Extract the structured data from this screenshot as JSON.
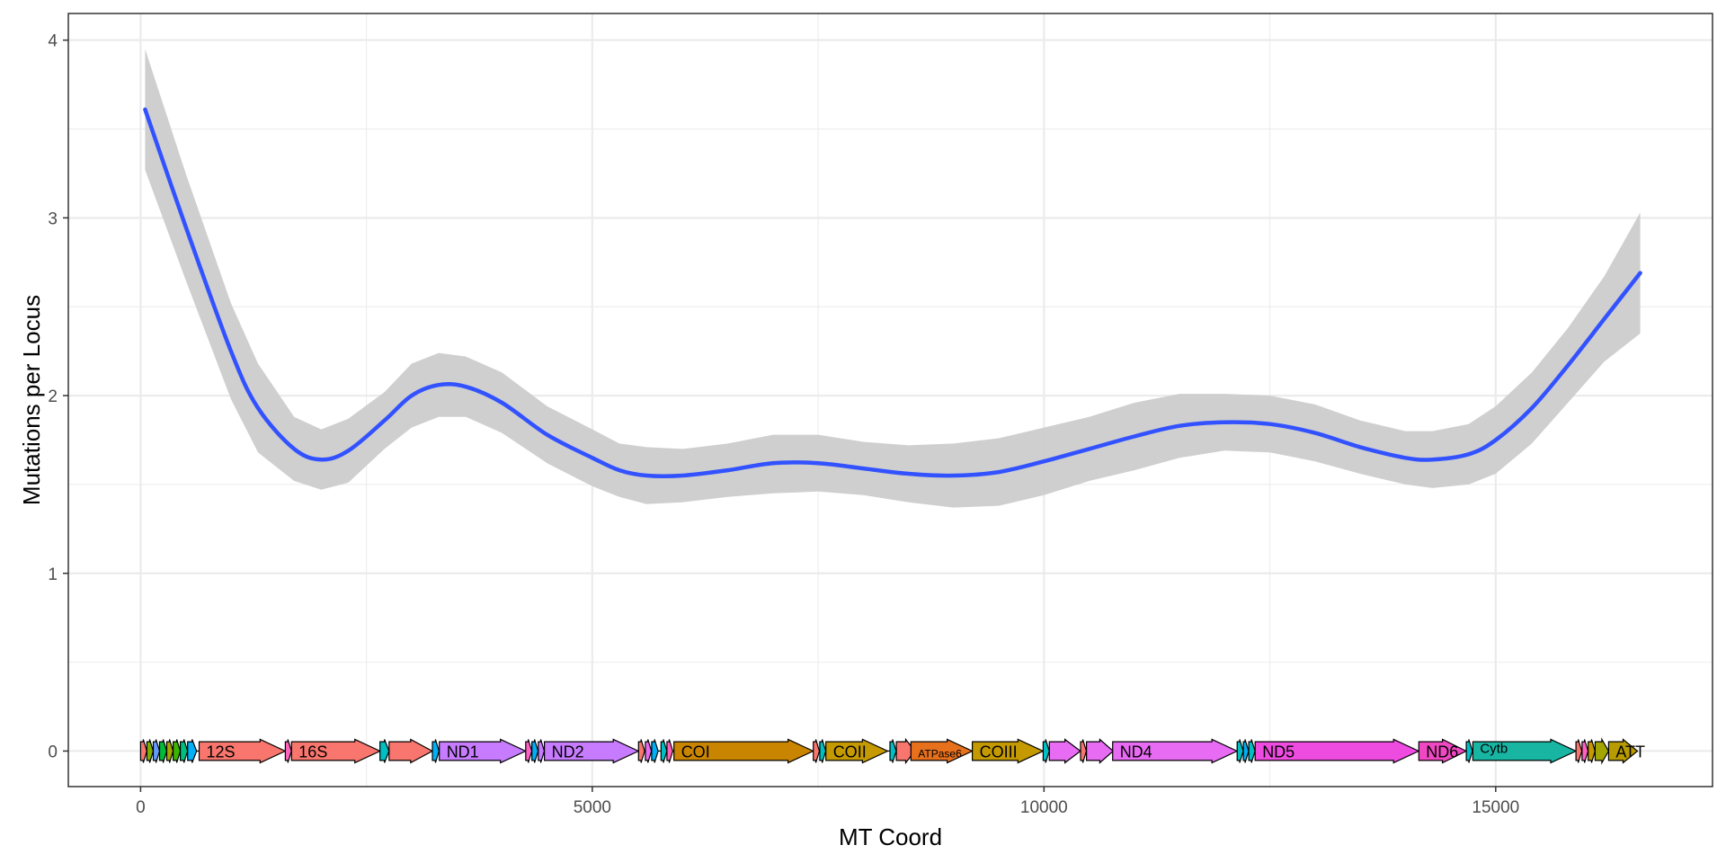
{
  "chart_data": {
    "type": "line",
    "xlabel": "MT Coord",
    "ylabel": "Mutations per Locus",
    "xlim": [
      -800,
      17400
    ],
    "ylim": [
      -0.2,
      4.15
    ],
    "x_ticks": [
      0,
      5000,
      10000,
      15000
    ],
    "y_ticks": [
      0,
      1,
      2,
      3,
      4
    ],
    "x_tick_labels": [
      "0",
      "5000",
      "10000",
      "15000"
    ],
    "y_tick_labels": [
      "0",
      "1",
      "2",
      "3",
      "4"
    ],
    "grid": true,
    "legend": "none",
    "colors": {
      "smooth_line": "#3352ff",
      "ribbon": "#cccccc",
      "grid": "#ebebeb",
      "panel_border": "#333333"
    },
    "series": [
      {
        "x": [
          50,
          500,
          1000,
          1300,
          1700,
          2000,
          2300,
          2700,
          3000,
          3300,
          3600,
          4000,
          4500,
          5000,
          5300,
          5600,
          6000,
          6500,
          7000,
          7500,
          8000,
          8500,
          9000,
          9500,
          10000,
          10500,
          11000,
          11500,
          12000,
          12500,
          13000,
          13500,
          14000,
          14300,
          14700,
          15000,
          15400,
          15800,
          16200,
          16600
        ],
        "y": [
          3.61,
          2.95,
          2.25,
          1.93,
          1.7,
          1.64,
          1.69,
          1.86,
          2.0,
          2.06,
          2.05,
          1.96,
          1.78,
          1.65,
          1.58,
          1.55,
          1.55,
          1.58,
          1.62,
          1.62,
          1.59,
          1.56,
          1.55,
          1.57,
          1.63,
          1.7,
          1.77,
          1.83,
          1.85,
          1.84,
          1.79,
          1.71,
          1.65,
          1.64,
          1.67,
          1.75,
          1.93,
          2.17,
          2.43,
          2.69
        ],
        "lower": [
          3.27,
          2.65,
          1.98,
          1.68,
          1.52,
          1.47,
          1.51,
          1.7,
          1.82,
          1.88,
          1.88,
          1.79,
          1.62,
          1.49,
          1.43,
          1.39,
          1.4,
          1.43,
          1.45,
          1.46,
          1.44,
          1.4,
          1.37,
          1.38,
          1.44,
          1.52,
          1.58,
          1.65,
          1.69,
          1.68,
          1.63,
          1.56,
          1.5,
          1.48,
          1.5,
          1.56,
          1.73,
          1.96,
          2.19,
          2.35
        ],
        "upper": [
          3.95,
          3.25,
          2.52,
          2.18,
          1.88,
          1.81,
          1.87,
          2.02,
          2.18,
          2.24,
          2.22,
          2.13,
          1.94,
          1.81,
          1.73,
          1.71,
          1.7,
          1.73,
          1.78,
          1.78,
          1.74,
          1.72,
          1.73,
          1.76,
          1.82,
          1.88,
          1.96,
          2.01,
          2.01,
          2.0,
          1.95,
          1.86,
          1.8,
          1.8,
          1.84,
          1.94,
          2.13,
          2.38,
          2.67,
          3.03
        ]
      }
    ],
    "genes": [
      {
        "start": 0,
        "end": 70,
        "color": "#f8766d",
        "label": ""
      },
      {
        "start": 70,
        "end": 140,
        "color": "#7cae00",
        "label": ""
      },
      {
        "start": 140,
        "end": 210,
        "color": "#619cff",
        "label": ""
      },
      {
        "start": 210,
        "end": 290,
        "color": "#00ba38",
        "label": ""
      },
      {
        "start": 290,
        "end": 360,
        "color": "#a3a500",
        "label": ""
      },
      {
        "start": 360,
        "end": 440,
        "color": "#39b600",
        "label": ""
      },
      {
        "start": 440,
        "end": 520,
        "color": "#00bf7d",
        "label": ""
      },
      {
        "start": 520,
        "end": 620,
        "color": "#00b0f6",
        "label": ""
      },
      {
        "start": 648,
        "end": 1601,
        "color": "#f8766d",
        "label": "12S"
      },
      {
        "start": 1602,
        "end": 1670,
        "color": "#ff62bc",
        "label": ""
      },
      {
        "start": 1671,
        "end": 2650,
        "color": "#f8766d",
        "label": "16S"
      },
      {
        "start": 2650,
        "end": 2750,
        "color": "#00bfc4",
        "label": ""
      },
      {
        "start": 2750,
        "end": 3229,
        "color": "#f8766d",
        "label": ""
      },
      {
        "start": 3230,
        "end": 3304,
        "color": "#00b0f6",
        "label": ""
      },
      {
        "start": 3307,
        "end": 4262,
        "color": "#c77cff",
        "label": "ND1"
      },
      {
        "start": 4263,
        "end": 4331,
        "color": "#ff61c3",
        "label": ""
      },
      {
        "start": 4332,
        "end": 4400,
        "color": "#00b0f6",
        "label": ""
      },
      {
        "start": 4402,
        "end": 4469,
        "color": "#c77cff",
        "label": ""
      },
      {
        "start": 4470,
        "end": 5511,
        "color": "#c77cff",
        "label": "ND2"
      },
      {
        "start": 5512,
        "end": 5579,
        "color": "#f8766d",
        "label": ""
      },
      {
        "start": 5587,
        "end": 5655,
        "color": "#e76bf3",
        "label": ""
      },
      {
        "start": 5657,
        "end": 5729,
        "color": "#00b0f6",
        "label": ""
      },
      {
        "start": 5761,
        "end": 5826,
        "color": "#00bfc4",
        "label": ""
      },
      {
        "start": 5826,
        "end": 5891,
        "color": "#ff62bc",
        "label": ""
      },
      {
        "start": 5904,
        "end": 7445,
        "color": "#c98500",
        "label": "COI"
      },
      {
        "start": 7446,
        "end": 7514,
        "color": "#f8766d",
        "label": ""
      },
      {
        "start": 7518,
        "end": 7585,
        "color": "#00bfc4",
        "label": ""
      },
      {
        "start": 7586,
        "end": 8269,
        "color": "#c49a00",
        "label": "COII"
      },
      {
        "start": 8295,
        "end": 8364,
        "color": "#00bfc4",
        "label": ""
      },
      {
        "start": 8366,
        "end": 8572,
        "color": "#f8766d",
        "label": ""
      },
      {
        "start": 8527,
        "end": 9207,
        "color": "#e7701d",
        "label": "ATPase6"
      },
      {
        "start": 9207,
        "end": 9990,
        "color": "#c49a00",
        "label": "COIII"
      },
      {
        "start": 9991,
        "end": 10058,
        "color": "#00bfc4",
        "label": ""
      },
      {
        "start": 10059,
        "end": 10404,
        "color": "#e76bf3",
        "label": ""
      },
      {
        "start": 10405,
        "end": 10469,
        "color": "#f8766d",
        "label": ""
      },
      {
        "start": 10470,
        "end": 10766,
        "color": "#e76bf3",
        "label": ""
      },
      {
        "start": 10760,
        "end": 12137,
        "color": "#e76bf3",
        "label": "ND4"
      },
      {
        "start": 12138,
        "end": 12206,
        "color": "#00bfc4",
        "label": ""
      },
      {
        "start": 12207,
        "end": 12265,
        "color": "#00b0f6",
        "label": ""
      },
      {
        "start": 12266,
        "end": 12336,
        "color": "#00bfc4",
        "label": ""
      },
      {
        "start": 12337,
        "end": 14148,
        "color": "#ee4be0",
        "label": "ND5"
      },
      {
        "start": 14149,
        "end": 14673,
        "color": "#f047c2",
        "label": "ND6"
      },
      {
        "start": 14674,
        "end": 14742,
        "color": "#00bfc4",
        "label": ""
      },
      {
        "start": 14747,
        "end": 15887,
        "color": "#18b5a3",
        "label": "Cytb"
      },
      {
        "start": 15888,
        "end": 15953,
        "color": "#f8766d",
        "label": ""
      },
      {
        "start": 15956,
        "end": 16023,
        "color": "#ff61c3",
        "label": ""
      },
      {
        "start": 16024,
        "end": 16100,
        "color": "#c49a00",
        "label": ""
      },
      {
        "start": 16100,
        "end": 16250,
        "color": "#a3a500",
        "label": ""
      },
      {
        "start": 16250,
        "end": 16569,
        "color": "#b89b00",
        "label": "ATT"
      }
    ]
  }
}
